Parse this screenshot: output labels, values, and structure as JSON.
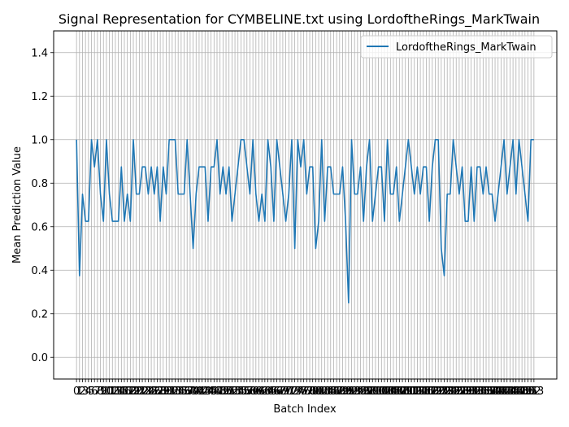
{
  "chart_data": {
    "type": "line",
    "title": "Signal Representation for CYMBELINE.txt using LordoftheRings_MarkTwain",
    "xlabel": "Batch Index",
    "ylabel": "Mean Prediction Value",
    "ylim": [
      -0.1,
      1.5
    ],
    "xlim": [
      -7.65,
      160.65
    ],
    "yticks": [
      "0.0",
      "0.2",
      "0.4",
      "0.6",
      "0.8",
      "1.0",
      "1.2",
      "1.4"
    ],
    "ytick_values": [
      0.0,
      0.2,
      0.4,
      0.6,
      0.8,
      1.0,
      1.2,
      1.4
    ],
    "xtick_count": 154,
    "grid": true,
    "legend_position": "top-right",
    "series": [
      {
        "name": "LordoftheRings_MarkTwain",
        "color": "#1f77b4",
        "values": [
          1.0,
          0.375,
          0.75,
          0.625,
          0.625,
          1.0,
          0.875,
          1.0,
          0.75,
          0.625,
          1.0,
          0.75,
          0.625,
          0.625,
          0.625,
          0.875,
          0.625,
          0.75,
          0.625,
          1.0,
          0.75,
          0.75,
          0.875,
          0.875,
          0.75,
          0.875,
          0.75,
          0.875,
          0.625,
          0.875,
          0.75,
          1.0,
          1.0,
          1.0,
          0.75,
          0.75,
          0.75,
          1.0,
          0.75,
          0.5,
          0.75,
          0.875,
          0.875,
          0.875,
          0.625,
          0.875,
          0.875,
          1.0,
          0.75,
          0.875,
          0.75,
          0.875,
          0.625,
          0.75,
          0.875,
          1.0,
          1.0,
          0.875,
          0.75,
          1.0,
          0.75,
          0.625,
          0.75,
          0.625,
          1.0,
          0.875,
          0.625,
          1.0,
          0.875,
          0.75,
          0.625,
          0.75,
          1.0,
          0.5,
          1.0,
          0.875,
          1.0,
          0.75,
          0.875,
          0.875,
          0.5,
          0.625,
          1.0,
          0.625,
          0.875,
          0.875,
          0.75,
          0.75,
          0.75,
          0.875,
          0.625,
          0.25,
          1.0,
          0.75,
          0.75,
          0.875,
          0.625,
          0.875,
          1.0,
          0.625,
          0.75,
          0.875,
          0.875,
          0.625,
          1.0,
          0.75,
          0.75,
          0.875,
          0.625,
          0.75,
          0.875,
          1.0,
          0.875,
          0.75,
          0.875,
          0.75,
          0.875,
          0.875,
          0.625,
          0.875,
          1.0,
          1.0,
          0.5,
          0.375,
          0.75,
          0.75,
          1.0,
          0.875,
          0.75,
          0.875,
          0.625,
          0.625,
          0.875,
          0.625,
          0.875,
          0.875,
          0.75,
          0.875,
          0.75,
          0.75,
          0.625,
          0.75,
          0.875,
          1.0,
          0.75,
          0.875,
          1.0,
          0.75,
          1.0,
          0.875,
          0.75,
          0.625,
          1.0,
          1.0
        ]
      }
    ]
  }
}
